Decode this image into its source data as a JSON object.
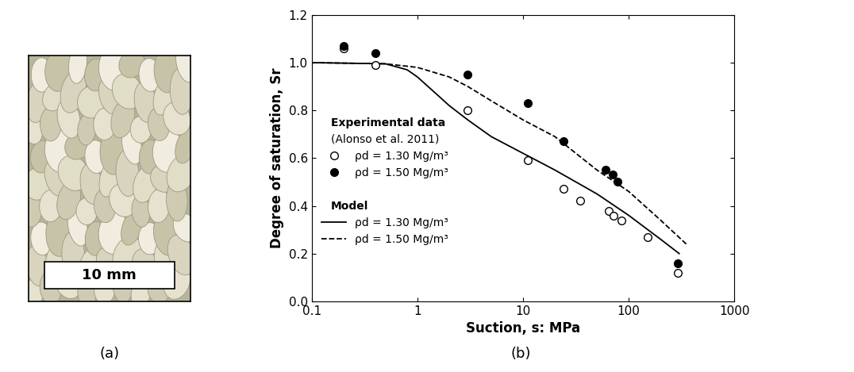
{
  "chart_data": {
    "type": "scatter",
    "x_label": "Suction, s: MPa",
    "y_label": "Degree of saturation, Sr",
    "log": "x",
    "xlim": [
      0.1,
      1000
    ],
    "xticks": [
      0.1,
      1,
      10,
      100,
      1000
    ],
    "ylim": [
      0,
      1.2
    ],
    "yticks": [
      {
        "value": 0,
        "label": "0.0"
      },
      0.2,
      0.4,
      0.6,
      0.8,
      {
        "value": 1,
        "label": "1.0"
      },
      1.2
    ],
    "legend": "center left",
    "annotations": [
      "Experimental data",
      "(Alonso et al. 2011)",
      "Model"
    ],
    "series": [
      {
        "name": "ρd = 1.30 Mg/m³",
        "type": "scatter",
        "marker": "open_circle",
        "color": "#000000",
        "x": [
          0.2,
          0.4,
          3,
          11,
          24,
          35,
          65,
          72,
          85,
          150,
          290
        ],
        "values": [
          1.06,
          0.99,
          0.8,
          0.59,
          0.47,
          0.42,
          0.38,
          0.36,
          0.34,
          0.27,
          0.12
        ]
      },
      {
        "name": "ρd = 1.50 Mg/m³",
        "type": "scatter",
        "marker": "filled_circle",
        "color": "#000000",
        "x": [
          0.2,
          0.4,
          3,
          11,
          24,
          60,
          70,
          78,
          290
        ],
        "values": [
          1.07,
          1.04,
          0.95,
          0.83,
          0.67,
          0.55,
          0.53,
          0.5,
          0.16
        ]
      },
      {
        "name": "ρd = 1.30 Mg/m³",
        "type": "line",
        "line_style": "solid",
        "color": "#000000",
        "x": [
          0.1,
          0.5,
          0.8,
          1,
          1.5,
          2,
          3,
          5,
          10,
          20,
          50,
          100,
          200,
          300
        ],
        "values": [
          1.0,
          0.995,
          0.97,
          0.94,
          0.87,
          0.82,
          0.76,
          0.69,
          0.62,
          0.55,
          0.45,
          0.36,
          0.26,
          0.2
        ]
      },
      {
        "name": "ρd = 1.50 Mg/m³",
        "type": "line",
        "line_style": "dashed",
        "color": "#000000",
        "x": [
          0.1,
          0.5,
          1,
          2,
          3,
          5,
          10,
          20,
          50,
          100,
          200,
          350
        ],
        "values": [
          1.0,
          0.995,
          0.98,
          0.94,
          0.9,
          0.84,
          0.76,
          0.69,
          0.55,
          0.46,
          0.34,
          0.24
        ]
      }
    ]
  },
  "photo": {
    "scale_label": "10 mm"
  },
  "captions": [
    "(a)",
    "(b)"
  ]
}
